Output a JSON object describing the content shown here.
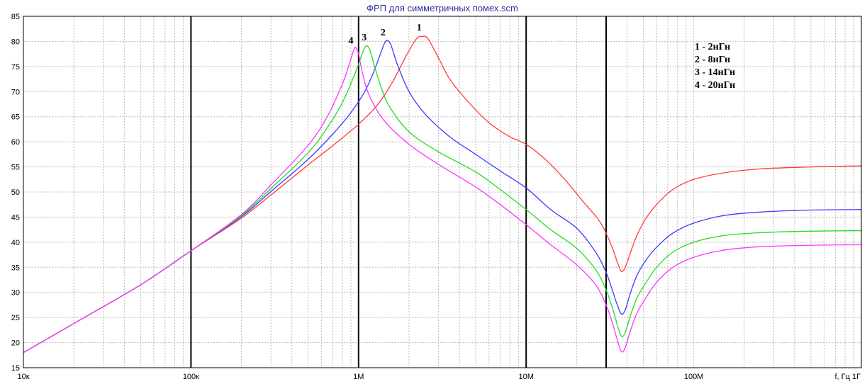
{
  "chart_data": {
    "type": "line",
    "title": "ФРП для симметричных помех.scm",
    "xlabel": "f, Гц",
    "xscale": "log",
    "xlim": [
      10000,
      1000000000
    ],
    "ylim": [
      15,
      85
    ],
    "grid": true,
    "x_ticks": [
      {
        "value": 10000,
        "label": "10к"
      },
      {
        "value": 100000,
        "label": "100к"
      },
      {
        "value": 1000000,
        "label": "1M"
      },
      {
        "value": 10000000,
        "label": "10M"
      },
      {
        "value": 100000000,
        "label": "100M"
      },
      {
        "value": 1000000000,
        "label": "1Г"
      }
    ],
    "y_ticks": [
      15,
      20,
      25,
      30,
      35,
      40,
      45,
      50,
      55,
      60,
      65,
      70,
      75,
      80,
      85
    ],
    "reference_lines_x": [
      100000,
      1000000,
      10000000,
      30000000
    ],
    "legend_position": "top-right",
    "legend": [
      "1 - 2нГн",
      "2 - 8нГн",
      "3 - 14нГн",
      "4 - 20нГн"
    ],
    "series": [
      {
        "label": "1",
        "color": "#ff3b3b",
        "x": [
          10000,
          20000,
          50000,
          100000,
          200000,
          300000,
          500000,
          700000,
          1000000,
          1300000,
          1600000,
          1900000,
          2200000,
          2400000,
          2600000,
          3000000,
          3500000,
          4500000,
          6000000,
          8000000,
          10000000,
          13000000,
          17000000,
          22000000,
          27000000,
          30000000,
          33000000,
          35000000,
          37000000,
          39000000,
          42000000,
          46000000,
          52000000,
          60000000,
          75000000,
          100000000,
          150000000,
          250000000,
          500000000,
          1000000000
        ],
        "y": [
          18,
          23.8,
          31.5,
          38.3,
          44.8,
          49.4,
          55.4,
          59.2,
          63.5,
          67.4,
          72,
          76.8,
          80.4,
          81,
          80.5,
          76.7,
          72.5,
          68,
          63.8,
          61,
          59.5,
          56.5,
          52.5,
          48,
          44.5,
          41.8,
          38.5,
          36,
          34.2,
          35,
          38,
          41.5,
          44.8,
          47.5,
          50.5,
          52.5,
          53.8,
          54.6,
          55,
          55.2
        ]
      },
      {
        "label": "2",
        "color": "#3b3bff",
        "x": [
          10000,
          20000,
          50000,
          100000,
          200000,
          300000,
          500000,
          700000,
          900000,
          1100000,
          1250000,
          1350000,
          1450000,
          1550000,
          1700000,
          2000000,
          2500000,
          3500000,
          5000000,
          7000000,
          10000000,
          14000000,
          20000000,
          26000000,
          30000000,
          33000000,
          35000000,
          37000000,
          39000000,
          42000000,
          46000000,
          52000000,
          60000000,
          75000000,
          100000000,
          150000000,
          250000000,
          500000000,
          1000000000
        ],
        "y": [
          18,
          23.8,
          31.5,
          38.3,
          45.1,
          50.1,
          56.5,
          61.5,
          65.8,
          70.3,
          74.5,
          77.5,
          80,
          79.5,
          75.5,
          70,
          65.5,
          61,
          57.5,
          54.2,
          50.8,
          46.5,
          42.8,
          38,
          34,
          30,
          27.5,
          25.7,
          26.5,
          30,
          33.5,
          36.5,
          39,
          41.8,
          43.8,
          45.3,
          46,
          46.4,
          46.5
        ]
      },
      {
        "label": "3",
        "color": "#22dd22",
        "x": [
          10000,
          20000,
          50000,
          100000,
          200000,
          300000,
          500000,
          650000,
          800000,
          950000,
          1050000,
          1100000,
          1150000,
          1200000,
          1300000,
          1500000,
          2000000,
          3000000,
          5000000,
          7000000,
          10000000,
          14000000,
          20000000,
          26000000,
          30000000,
          33000000,
          35000000,
          37000000,
          39000000,
          42000000,
          46000000,
          52000000,
          60000000,
          75000000,
          100000000,
          150000000,
          250000000,
          500000000,
          1000000000
        ],
        "y": [
          18,
          23.8,
          31.5,
          38.3,
          45.3,
          50.7,
          57.8,
          62.8,
          67.8,
          73.5,
          77.5,
          79,
          78.8,
          77,
          73,
          67.5,
          62,
          58,
          54,
          50.5,
          46.5,
          42.5,
          38.8,
          34.5,
          30.5,
          26.5,
          23.5,
          21.3,
          22,
          25.5,
          29,
          32,
          35,
          38,
          40,
          41.3,
          41.9,
          42.2,
          42.3
        ]
      },
      {
        "label": "4",
        "color": "#ff33ff",
        "x": [
          10000,
          20000,
          50000,
          100000,
          200000,
          300000,
          500000,
          650000,
          800000,
          880000,
          930000,
          960000,
          1000000,
          1050000,
          1150000,
          1400000,
          2000000,
          3000000,
          5000000,
          7000000,
          10000000,
          14000000,
          20000000,
          26000000,
          30000000,
          33000000,
          35000000,
          37000000,
          39000000,
          42000000,
          46000000,
          52000000,
          60000000,
          75000000,
          100000000,
          150000000,
          250000000,
          500000000,
          1000000000
        ],
        "y": [
          18,
          23.8,
          31.5,
          38.3,
          45.5,
          51.4,
          59.3,
          65,
          71.5,
          75.5,
          78,
          78.8,
          77.5,
          74,
          69.5,
          64.5,
          59.5,
          55.5,
          51,
          47.5,
          43.5,
          39.5,
          35.5,
          31.5,
          27.5,
          23.5,
          20.5,
          18.2,
          19,
          22.5,
          26,
          29,
          32,
          35,
          37,
          38.4,
          39.1,
          39.4,
          39.5
        ]
      }
    ],
    "curve_labels": [
      {
        "text": "1",
        "x": 2300000,
        "y": 82.2
      },
      {
        "text": "2",
        "x": 1400000,
        "y": 81.2
      },
      {
        "text": "3",
        "x": 1080000,
        "y": 80.2
      },
      {
        "text": "4",
        "x": 900000,
        "y": 79.6
      }
    ]
  }
}
